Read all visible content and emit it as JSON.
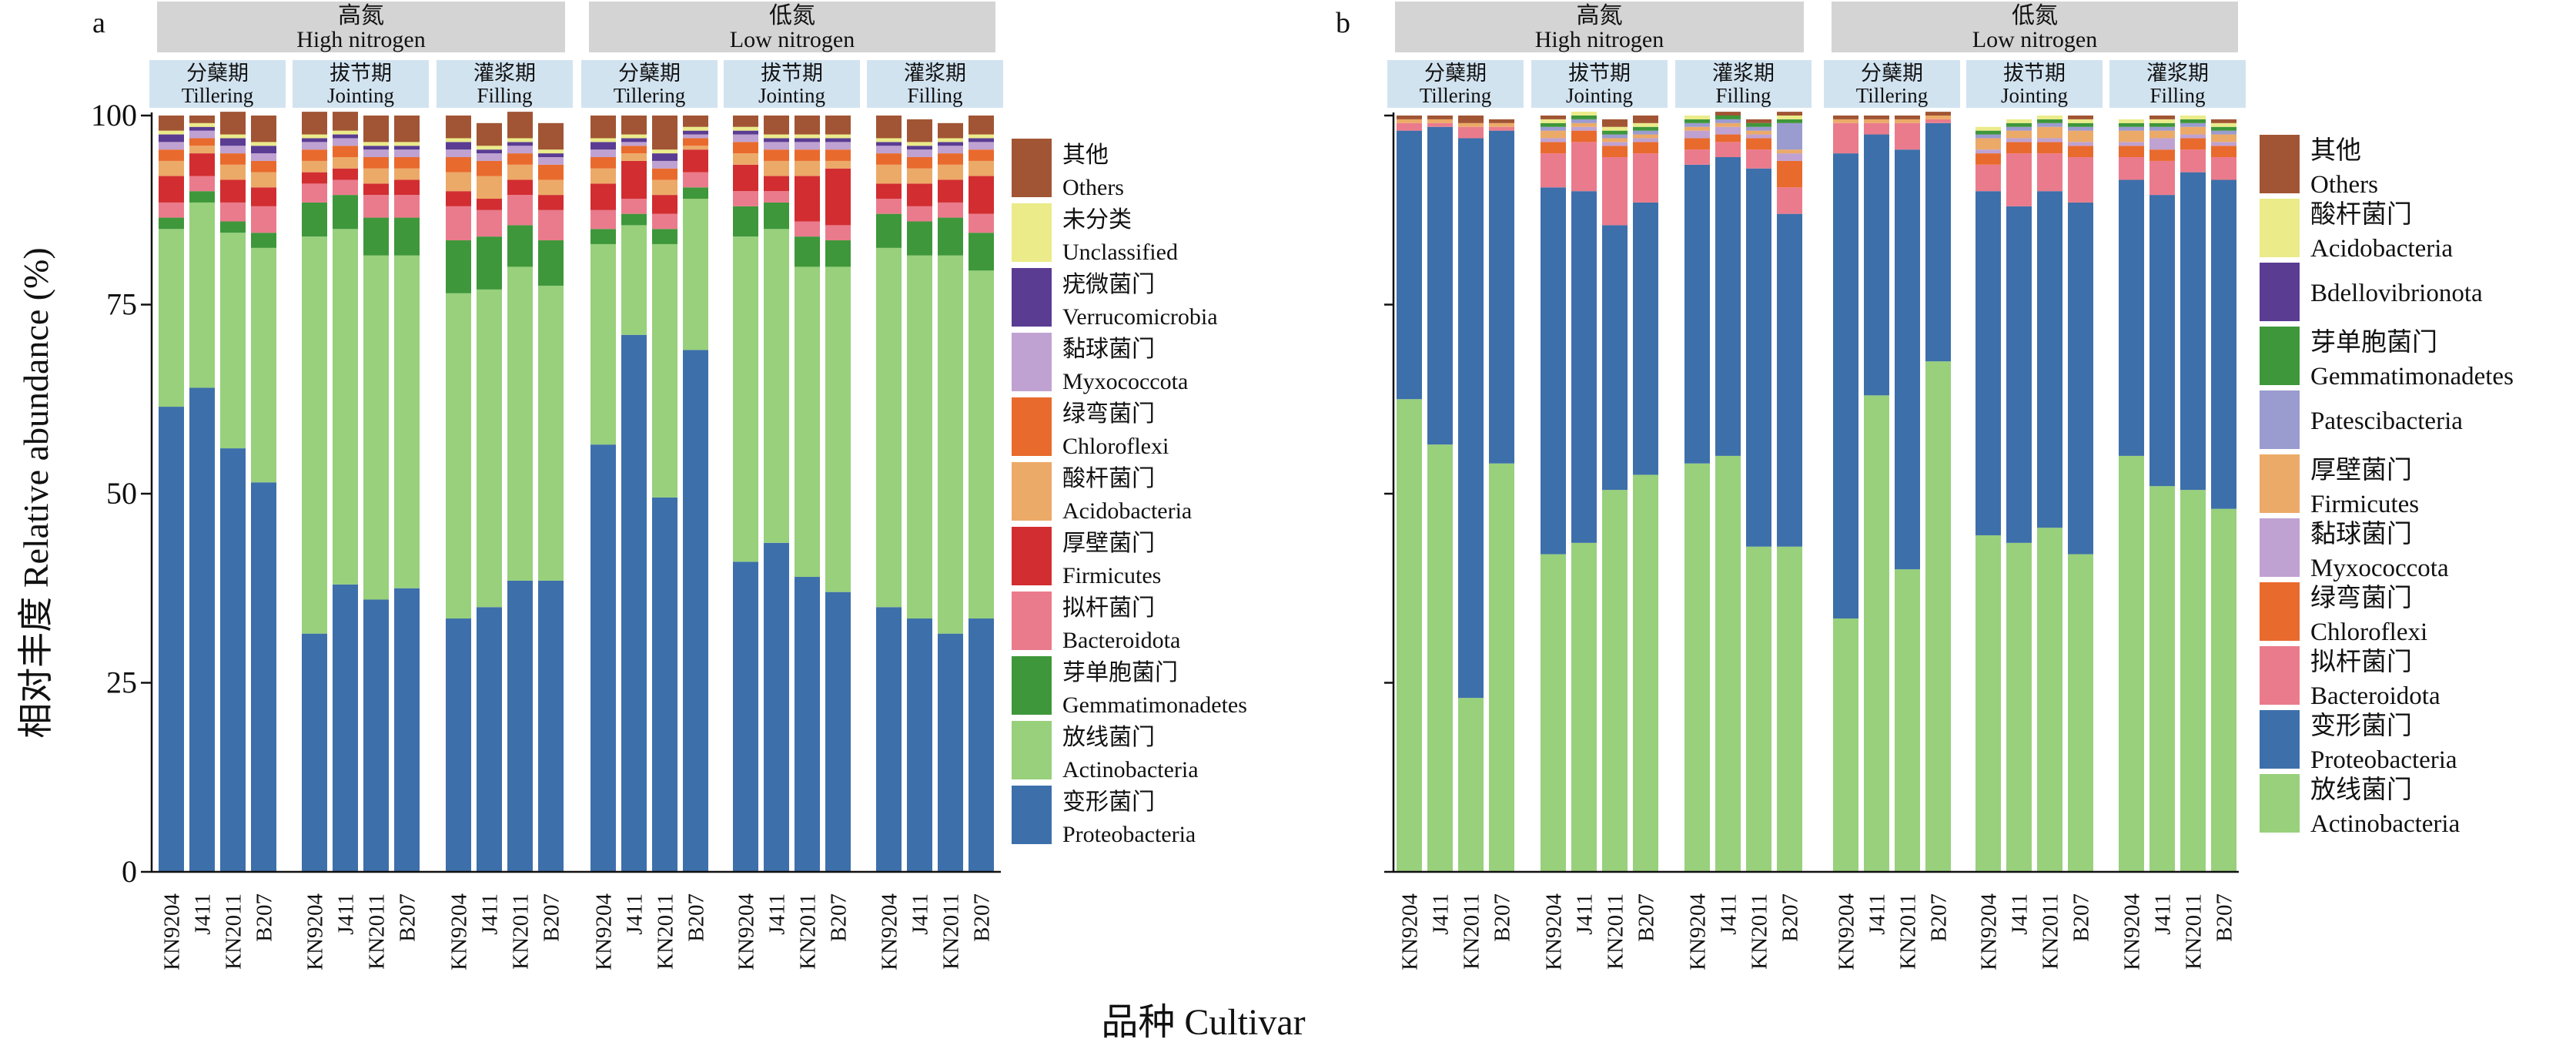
{
  "figure": {
    "xlabel": "品种 Cultivar",
    "ylabel": "相对丰度 Relative abundance (%)"
  },
  "colors": {
    "Proteobacteria": "#3d6faa",
    "Actinobacteria": "#98d07c",
    "Gemmatimonadetes": "#3e973a",
    "Bacteroidota": "#ea7b8c",
    "Firmicutes": "#d22d31",
    "Acidobacteria": "#ecaa68",
    "Chloroflexi": "#e96a2d",
    "Myxococcota": "#bfa2d1",
    "Verrucomicrobia": "#5a3c93",
    "Unclassified": "#ebeb8a",
    "Others": "#a15534",
    "Acidobacteria_b": "#ebeb8a",
    "Firmicutes_b": "#ecaa68",
    "Bdellovibrionota": "#5a3c93",
    "Patescibacteria": "#9a9bcf",
    "strip": "#d4d4d4",
    "stagebox": "#d2e3f0"
  },
  "chart_data": [
    {
      "panel": "a",
      "type": "bar",
      "stacked": true,
      "ylim": [
        0,
        100
      ],
      "yticks": [
        0,
        25,
        50,
        75,
        100
      ],
      "nitrogen": [
        {
          "zh": "高氮",
          "en": "High nitrogen"
        },
        {
          "zh": "低氮",
          "en": "Low nitrogen"
        }
      ],
      "stages": [
        {
          "zh": "分蘖期",
          "en": "Tillering"
        },
        {
          "zh": "拔节期",
          "en": "Jointing"
        },
        {
          "zh": "灌浆期",
          "en": "Filling"
        }
      ],
      "cultivars": [
        "KN9204",
        "J411",
        "KN2011",
        "B207"
      ],
      "legend": [
        {
          "key": "Others",
          "zh": "其他",
          "en": "Others"
        },
        {
          "key": "Unclassified",
          "zh": "未分类",
          "en": "Unclassified"
        },
        {
          "key": "Verrucomicrobia",
          "zh": "疣微菌门",
          "en": "Verrucomicrobia"
        },
        {
          "key": "Myxococcota",
          "zh": "黏球菌门",
          "en": "Myxococcota"
        },
        {
          "key": "Chloroflexi",
          "zh": "绿弯菌门",
          "en": "Chloroflexi"
        },
        {
          "key": "Acidobacteria",
          "zh": "酸杆菌门",
          "en": "Acidobacteria"
        },
        {
          "key": "Firmicutes",
          "zh": "厚壁菌门",
          "en": "Firmicutes"
        },
        {
          "key": "Bacteroidota",
          "zh": "拟杆菌门",
          "en": "Bacteroidota"
        },
        {
          "key": "Gemmatimonadetes",
          "zh": "芽单胞菌门",
          "en": "Gemmatimonadetes"
        },
        {
          "key": "Actinobacteria",
          "zh": "放线菌门",
          "en": "Actinobacteria"
        },
        {
          "key": "Proteobacteria",
          "zh": "变形菌门",
          "en": "Proteobacteria"
        }
      ],
      "stack_order": [
        "Proteobacteria",
        "Actinobacteria",
        "Gemmatimonadetes",
        "Bacteroidota",
        "Firmicutes",
        "Acidobacteria",
        "Chloroflexi",
        "Myxococcota",
        "Verrucomicrobia",
        "Unclassified",
        "Others"
      ],
      "series": [
        {
          "name": "Proteobacteria",
          "values": [
            61.5,
            64,
            56,
            51.5,
            31.5,
            38,
            36,
            37.5,
            33.5,
            35,
            38.5,
            38.5,
            56.5,
            71,
            49.5,
            69,
            41,
            43.5,
            39,
            37,
            35,
            33.5,
            31.5,
            33.5
          ]
        },
        {
          "name": "Actinobacteria",
          "values": [
            23.5,
            24.5,
            28.5,
            31,
            52.5,
            47,
            45.5,
            44,
            43,
            42,
            41.5,
            39,
            26.5,
            14.5,
            33.5,
            20,
            43,
            41.5,
            41,
            43,
            47.5,
            48,
            50,
            46
          ]
        },
        {
          "name": "Gemmatimonadetes",
          "values": [
            1.5,
            1.5,
            1.5,
            2,
            4.5,
            4.5,
            5,
            5,
            7,
            7,
            5.5,
            6,
            2,
            1.5,
            2,
            1.5,
            4,
            3.5,
            4,
            3.5,
            4.5,
            4.5,
            5,
            5
          ]
        },
        {
          "name": "Bacteroidota",
          "values": [
            2,
            2,
            2.5,
            3.5,
            2.5,
            2,
            3,
            3,
            4.5,
            3.5,
            4,
            4,
            2.5,
            2,
            2,
            2,
            2,
            1.5,
            2,
            2,
            2,
            2,
            2,
            2.5
          ]
        },
        {
          "name": "Firmicutes",
          "values": [
            3.5,
            3,
            3,
            2.5,
            1.5,
            1.5,
            1.5,
            2,
            2,
            1.5,
            2,
            2,
            3.5,
            5,
            2.5,
            3,
            3.5,
            2,
            6,
            7.5,
            2,
            3,
            3,
            5
          ]
        },
        {
          "name": "Acidobacteria",
          "values": [
            2,
            1,
            2,
            2,
            1.5,
            1.5,
            2,
            1.5,
            2.5,
            3,
            2,
            2,
            2,
            1,
            2,
            0.5,
            1.5,
            2,
            2,
            1,
            2.5,
            2,
            2,
            2
          ]
        },
        {
          "name": "Chloroflexi",
          "values": [
            1.5,
            1,
            1.5,
            1.5,
            1.5,
            1.5,
            1.5,
            1.5,
            2,
            2,
            1.5,
            2,
            1.5,
            1,
            1.5,
            1,
            1.5,
            1.5,
            1.5,
            1.5,
            1.5,
            1.5,
            1.5,
            1.5
          ]
        },
        {
          "name": "Myxococcota",
          "values": [
            1,
            1,
            1,
            1,
            1,
            1,
            1,
            1,
            1,
            1,
            1,
            1,
            1,
            0.5,
            1,
            0.5,
            1,
            1,
            1,
            1,
            1,
            1,
            1,
            1
          ]
        },
        {
          "name": "Verrucomicrobia",
          "values": [
            1,
            0.5,
            1,
            1,
            0.5,
            0.5,
            0.5,
            0.5,
            1,
            0.5,
            0.5,
            0.5,
            1,
            0.5,
            1,
            0.5,
            0.5,
            0.5,
            0.5,
            0.5,
            0.5,
            0.5,
            0.5,
            0.5
          ]
        },
        {
          "name": "Unclassified",
          "values": [
            0.5,
            0.5,
            0.5,
            0.5,
            0.5,
            0.5,
            0.5,
            0.5,
            0.5,
            0.5,
            0.5,
            0.5,
            0.5,
            0.5,
            0.5,
            0.5,
            0.5,
            0.5,
            0.5,
            0.5,
            0.5,
            0.5,
            0.5,
            0.5
          ]
        },
        {
          "name": "Others",
          "values": [
            2,
            1,
            3,
            3.5,
            3,
            2.5,
            3.5,
            3.5,
            3,
            3,
            3.5,
            3.5,
            3,
            2.5,
            4.5,
            1.5,
            1.5,
            2.5,
            2.5,
            2.5,
            3,
            3,
            2,
            2.5
          ]
        }
      ]
    },
    {
      "panel": "b",
      "type": "bar",
      "stacked": true,
      "ylim": [
        0,
        100
      ],
      "nitrogen": [
        {
          "zh": "高氮",
          "en": "High nitrogen"
        },
        {
          "zh": "低氮",
          "en": "Low nitrogen"
        }
      ],
      "stages": [
        {
          "zh": "分蘖期",
          "en": "Tillering"
        },
        {
          "zh": "拔节期",
          "en": "Jointing"
        },
        {
          "zh": "灌浆期",
          "en": "Filling"
        }
      ],
      "cultivars": [
        "KN9204",
        "J411",
        "KN2011",
        "B207"
      ],
      "legend": [
        {
          "key": "Others",
          "zh": "其他",
          "en": "Others"
        },
        {
          "key": "Acidobacteria_b",
          "zh": "酸杆菌门",
          "en": "Acidobacteria"
        },
        {
          "key": "Bdellovibrionota",
          "zh": "",
          "en": "Bdellovibrionota"
        },
        {
          "key": "Gemmatimonadetes",
          "zh": "芽单胞菌门",
          "en": "Gemmatimonadetes"
        },
        {
          "key": "Patescibacteria",
          "zh": "",
          "en": "Patescibacteria"
        },
        {
          "key": "Firmicutes_b",
          "zh": "厚壁菌门",
          "en": "Firmicutes"
        },
        {
          "key": "Myxococcota",
          "zh": "黏球菌门",
          "en": "Myxococcota"
        },
        {
          "key": "Chloroflexi",
          "zh": "绿弯菌门",
          "en": "Chloroflexi"
        },
        {
          "key": "Bacteroidota",
          "zh": "拟杆菌门",
          "en": "Bacteroidota"
        },
        {
          "key": "Proteobacteria",
          "zh": "变形菌门",
          "en": "Proteobacteria"
        },
        {
          "key": "Actinobacteria",
          "zh": "放线菌门",
          "en": "Actinobacteria"
        }
      ],
      "stack_order": [
        "Actinobacteria",
        "Proteobacteria",
        "Bacteroidota",
        "Chloroflexi",
        "Myxococcota",
        "Firmicutes_b",
        "Patescibacteria",
        "Gemmatimonadetes",
        "Bdellovibrionota",
        "Acidobacteria_b",
        "Others"
      ],
      "series": [
        {
          "name": "Actinobacteria",
          "values": [
            62.5,
            56.5,
            23,
            54,
            42,
            43.5,
            50.5,
            52.5,
            54,
            55,
            43,
            43,
            33.5,
            63,
            40,
            67.5,
            44.5,
            43.5,
            45.5,
            42,
            55,
            51,
            50.5,
            48
          ]
        },
        {
          "name": "Proteobacteria",
          "values": [
            35.5,
            42,
            74,
            44,
            48.5,
            46.5,
            35,
            36,
            39.5,
            39.5,
            50,
            44,
            61.5,
            34.5,
            55.5,
            31.5,
            45.5,
            44.5,
            44.5,
            46.5,
            36.5,
            38.5,
            42,
            43.5
          ]
        },
        {
          "name": "Bacteroidota",
          "values": [
            1,
            0.5,
            1.5,
            0.5,
            4.5,
            6.5,
            9,
            6.5,
            2,
            2,
            2.5,
            3.5,
            4,
            1.5,
            3.5,
            0.5,
            3.5,
            7,
            5,
            6,
            3,
            4.5,
            3,
            3
          ]
        },
        {
          "name": "Chloroflexi",
          "values": [
            0,
            0,
            0,
            0,
            1.5,
            1.5,
            1.5,
            1.5,
            1.5,
            1,
            1.5,
            3.5,
            0,
            0,
            0,
            0,
            1.5,
            1.5,
            1.5,
            1.5,
            1.5,
            1.5,
            1.5,
            1.5
          ]
        },
        {
          "name": "Myxococcota",
          "values": [
            0,
            0,
            0,
            0,
            0.5,
            0.5,
            0.5,
            0.5,
            1,
            1,
            0.5,
            1,
            0,
            0,
            0,
            0,
            0.5,
            0.5,
            0.5,
            0.5,
            0.5,
            1.5,
            0.5,
            0.5
          ]
        },
        {
          "name": "Firmicutes_b",
          "values": [
            0.5,
            0.5,
            0.5,
            0.5,
            1,
            0.5,
            0.5,
            0.5,
            0.5,
            0.5,
            0.5,
            0.5,
            0.5,
            0.5,
            0.5,
            0.5,
            1.5,
            1,
            1.5,
            1.5,
            1.5,
            1,
            1,
            1
          ]
        },
        {
          "name": "Patescibacteria",
          "values": [
            0,
            0,
            0,
            0,
            0.5,
            0.5,
            0.5,
            0.5,
            0.5,
            0.5,
            0.5,
            3.5,
            0,
            0,
            0,
            0,
            0.5,
            0.5,
            0.5,
            0.5,
            0.5,
            0.5,
            0.5,
            0.5
          ]
        },
        {
          "name": "Gemmatimonadetes",
          "values": [
            0,
            0,
            0,
            0,
            0.5,
            0.5,
            0.5,
            0.5,
            0.5,
            0.5,
            0.5,
            0.5,
            0,
            0,
            0,
            0,
            0.5,
            0.5,
            0.5,
            0.5,
            0.5,
            0.5,
            0.5,
            0.5
          ]
        },
        {
          "name": "Bdellovibrionota",
          "values": [
            0,
            0,
            0,
            0,
            0,
            0,
            0,
            0,
            0,
            0,
            0,
            0,
            0,
            0,
            0,
            0,
            0,
            0,
            0,
            0,
            0,
            0,
            0,
            0
          ]
        },
        {
          "name": "Acidobacteria_b",
          "values": [
            0,
            0,
            0,
            0,
            0.5,
            0.5,
            0.5,
            0.5,
            0.5,
            0,
            0,
            0.5,
            0,
            0,
            0,
            0,
            0.5,
            0.5,
            0.5,
            0.5,
            0.5,
            0.5,
            0.5,
            0.5
          ]
        },
        {
          "name": "Others",
          "values": [
            0.5,
            0.5,
            1,
            0.5,
            0.5,
            0,
            1,
            1,
            0,
            0.5,
            0.5,
            0.5,
            0.5,
            0.5,
            0.5,
            0.5,
            0,
            0,
            0,
            0.5,
            0,
            0.5,
            0,
            0.5
          ]
        }
      ]
    }
  ]
}
